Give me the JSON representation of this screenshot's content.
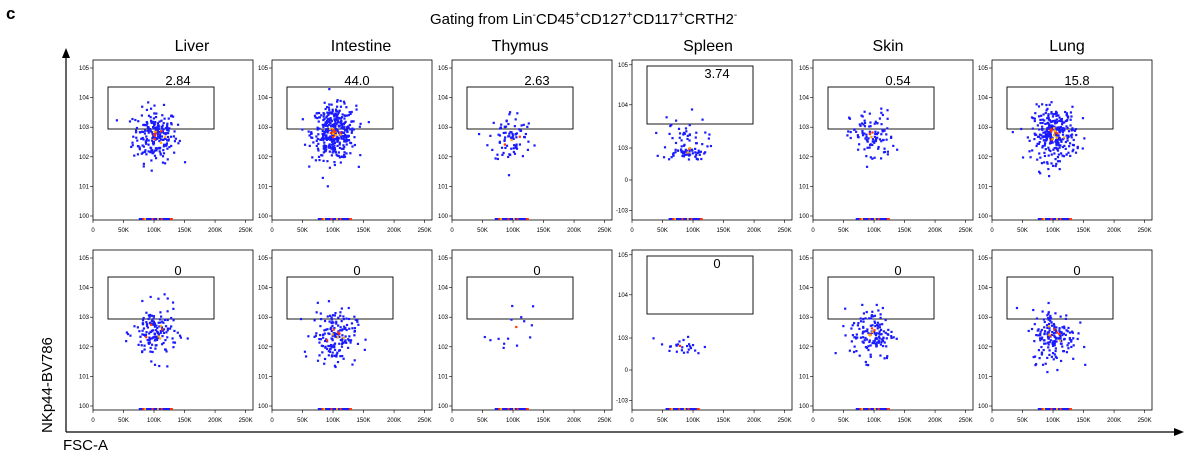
{
  "panel_letter": "c",
  "title": {
    "prefix": "Gating from Lin",
    "sup1": "-",
    "m1": "CD45",
    "sup2": "+",
    "m2": "CD127",
    "sup3": "+",
    "m3": "CD117",
    "sup4": "+",
    "m4": "CRTH2",
    "sup5": "-"
  },
  "axis_labels": {
    "y": "NKp44-BV786",
    "x": "FSC-A"
  },
  "colors": {
    "dots": "#1a1aff",
    "hot": "#ff3300",
    "warm": "#ffaa00",
    "axis": "#000000"
  },
  "chart_data": {
    "type": "scatter",
    "tissues": [
      "Liver",
      "Intestine",
      "Thymus",
      "Spleen",
      "Skin",
      "Lung"
    ],
    "x_ticks": [
      "0",
      "50K",
      "100K",
      "150K",
      "200K",
      "250K"
    ],
    "xlim": [
      0,
      262144
    ],
    "rows": [
      {
        "gate_percent": [
          "2.84",
          "44.0",
          "2.63",
          "3.74",
          "0.54",
          "15.8"
        ],
        "y_ticks": [
          [
            "10^0",
            "10^1",
            "10^2",
            "10^3",
            "10^4",
            "10^5"
          ],
          [
            "10^0",
            "10^1",
            "10^2",
            "10^3",
            "10^4",
            "10^5"
          ],
          [
            "10^0",
            "10^1",
            "10^2",
            "10^3",
            "10^4",
            "10^5"
          ],
          [
            "-10^3",
            "0",
            "10^3",
            "10^4",
            "10^5"
          ],
          [
            "10^0",
            "10^1",
            "10^2",
            "10^3",
            "10^4",
            "10^5"
          ],
          [
            "10^0",
            "10^1",
            "10^2",
            "10^3",
            "10^4",
            "10^5"
          ]
        ],
        "clusters": [
          {
            "x": 100000,
            "y_decade": 2.75,
            "n": 220
          },
          {
            "x": 100000,
            "y_decade": 2.85,
            "n": 380
          },
          {
            "x": 95000,
            "y_decade": 2.7,
            "n": 80
          },
          {
            "x": 85000,
            "y_decade": 2.9,
            "n": 90
          },
          {
            "x": 95000,
            "y_decade": 2.7,
            "n": 100
          },
          {
            "x": 100000,
            "y_decade": 2.8,
            "n": 300
          }
        ]
      },
      {
        "gate_percent": [
          "0",
          "0",
          "0",
          "0",
          "0",
          "0"
        ],
        "y_ticks": [
          [
            "10^0",
            "10^1",
            "10^2",
            "10^3",
            "10^4",
            "10^5"
          ],
          [
            "10^0",
            "10^1",
            "10^2",
            "10^3",
            "10^4",
            "10^5"
          ],
          [
            "10^0",
            "10^1",
            "10^2",
            "10^3",
            "10^4",
            "10^5"
          ],
          [
            "-10^3",
            "0",
            "10^3",
            "10^4",
            "10^5"
          ],
          [
            "10^0",
            "10^1",
            "10^2",
            "10^3",
            "10^4",
            "10^5"
          ],
          [
            "10^0",
            "10^1",
            "10^2",
            "10^3",
            "10^4",
            "10^5"
          ]
        ],
        "clusters": [
          {
            "x": 100000,
            "y_decade": 2.5,
            "n": 150
          },
          {
            "x": 100000,
            "y_decade": 2.4,
            "n": 170
          },
          {
            "x": 95000,
            "y_decade": 2.5,
            "n": 14
          },
          {
            "x": 80000,
            "y_decade": 2.3,
            "n": 25
          },
          {
            "x": 95000,
            "y_decade": 2.5,
            "n": 140
          },
          {
            "x": 100000,
            "y_decade": 2.4,
            "n": 170
          }
        ]
      }
    ]
  }
}
